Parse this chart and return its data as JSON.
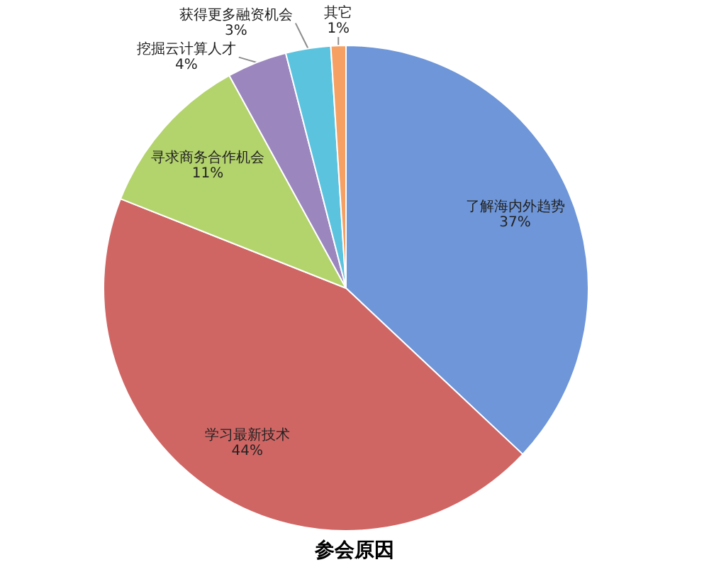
{
  "chart_data": {
    "type": "pie",
    "title": "参会原因",
    "categories": [
      "了解海内外趋势",
      "学习最新技术",
      "寻求商务合作机会",
      "挖掘云计算人才",
      "获得更多融资机会",
      "其它"
    ],
    "values": [
      37,
      44,
      11,
      4,
      3,
      1
    ],
    "value_labels": [
      "37%",
      "44%",
      "11%",
      "4%",
      "3%",
      "1%"
    ],
    "colors": [
      "#6e96d8",
      "#cf6664",
      "#b3d36c",
      "#9b86be",
      "#5cc3df",
      "#f6a064"
    ]
  }
}
